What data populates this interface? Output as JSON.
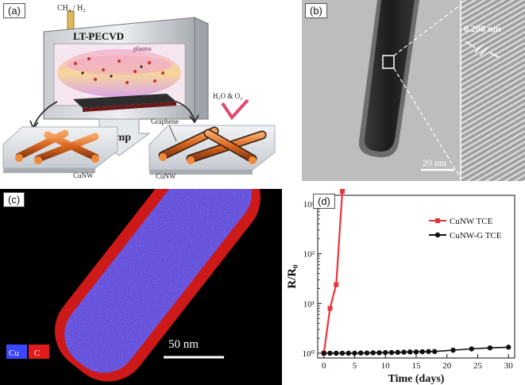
{
  "panel_a": {
    "label": "(a)",
    "gas": "CH₄ / H₂",
    "chamber": "LT-PECVD",
    "plasma": "plasma",
    "pump": "pump",
    "oxidants": "H₂O & O₂",
    "graphene": "Graphene",
    "cunw_left": "CuNW",
    "cunw_right": "CuNW"
  },
  "panel_b": {
    "label": "(b)",
    "lattice_spacing": "0.208 nm",
    "scale_bar": "20 nm"
  },
  "panel_c": {
    "label": "(c)",
    "legend_cu": "Cu",
    "legend_c": "C",
    "scale_bar": "50 nm"
  },
  "chart_data": {
    "type": "line",
    "panel_label": "(d)",
    "xlabel": "Time (days)",
    "ylabel": "R/R₀",
    "y_scale": "log",
    "xlim": [
      -1,
      31
    ],
    "ylim": [
      0.8,
      1500
    ],
    "x_ticks": [
      0,
      5,
      10,
      15,
      20,
      25,
      30
    ],
    "y_ticks": [
      1,
      10,
      100,
      1000
    ],
    "y_tick_labels": [
      "10⁰",
      "10¹",
      "10²",
      "10³"
    ],
    "grid": false,
    "legend_position": "top-right",
    "series": [
      {
        "name": "CuNW TCE",
        "color": "#e8343b",
        "marker": "square",
        "x": [
          0,
          1,
          2,
          3
        ],
        "y": [
          1,
          8,
          24,
          1800
        ]
      },
      {
        "name": "CuNW-G TCE",
        "color": "#111111",
        "marker": "circle",
        "x": [
          0,
          1,
          2,
          3,
          4,
          5,
          6,
          7,
          8,
          9,
          10,
          11,
          12,
          13,
          14,
          15,
          16,
          17,
          18,
          21,
          24,
          27,
          30
        ],
        "y": [
          1,
          1,
          1,
          1,
          1,
          1,
          1.01,
          1.01,
          1.02,
          1.02,
          1.03,
          1.03,
          1.04,
          1.05,
          1.06,
          1.06,
          1.07,
          1.08,
          1.08,
          1.15,
          1.22,
          1.28,
          1.32
        ]
      }
    ]
  }
}
